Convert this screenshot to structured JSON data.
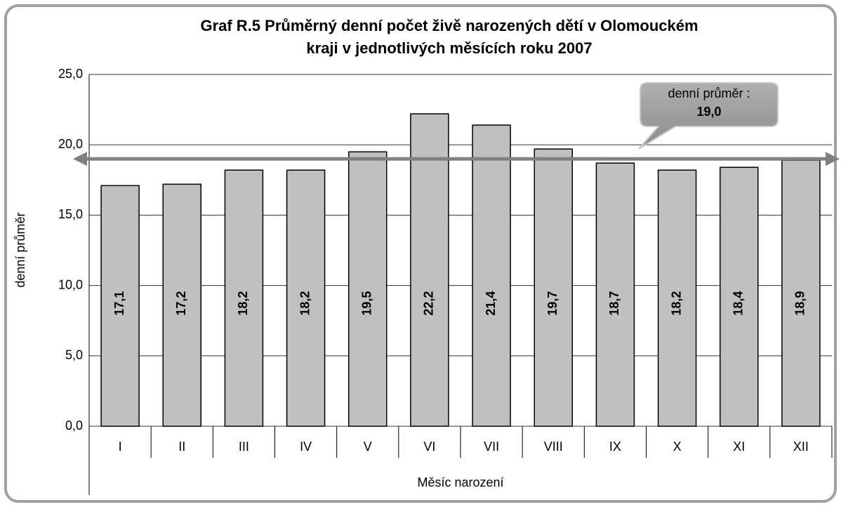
{
  "chart_data": {
    "type": "bar",
    "title": [
      "Graf R.5  Průměrný denní počet živě narozených dětí v Olomouckém",
      "kraji v jednotlivých měsících roku 2007"
    ],
    "y_label": "denní průměr",
    "x_label": "Měsíc narození",
    "categories": [
      "I",
      "II",
      "III",
      "IV",
      "V",
      "VI",
      "VII",
      "VIII",
      "IX",
      "X",
      "XI",
      "XII"
    ],
    "values": [
      17.1,
      17.2,
      18.2,
      18.2,
      19.5,
      22.2,
      21.4,
      19.7,
      18.7,
      18.2,
      18.4,
      18.9
    ],
    "value_labels": [
      "17,1",
      "17,2",
      "18,2",
      "18,2",
      "19,5",
      "22,2",
      "21,4",
      "19,7",
      "18,7",
      "18,2",
      "18,4",
      "18,9"
    ],
    "color": "#c0c0c0",
    "ylim": [
      0,
      25
    ],
    "yticks": [
      {
        "value": 0,
        "label": "0,0"
      },
      {
        "value": 5,
        "label": "5,0"
      },
      {
        "value": 10,
        "label": "10,0"
      },
      {
        "value": 15,
        "label": "15,0"
      },
      {
        "value": 20,
        "label": "20,0"
      },
      {
        "value": 25,
        "label": "25,0"
      }
    ],
    "grid": true,
    "average": {
      "value": 19.0,
      "label": "19,0",
      "text": "denní průměr :"
    }
  }
}
